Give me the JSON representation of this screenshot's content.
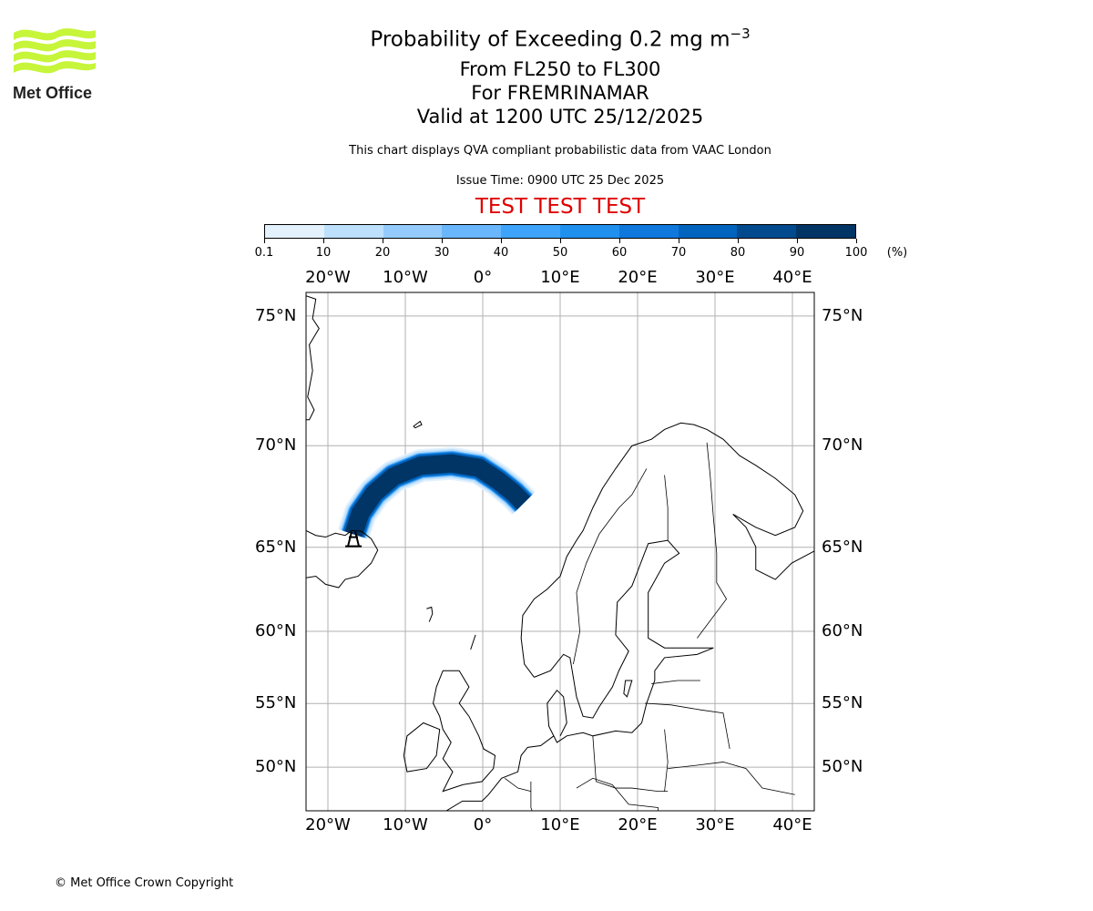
{
  "title": {
    "main": "Probability of Exceeding 0.2 mg m",
    "main_sup": "−3",
    "line2": "From FL250 to FL300",
    "line3": "For FREMRINAMAR",
    "line4": "Valid at 1200 UTC 25/12/2025"
  },
  "subtitle": "This chart displays QVA compliant probabilistic data from VAAC London",
  "issue_time": "Issue Time: 0900 UTC 25 Dec 2025",
  "test_banner": "TEST TEST TEST",
  "copyright": "© Met Office Crown Copyright",
  "logo_text": "Met Office",
  "colorbar": {
    "ticks": [
      "0.1",
      "10",
      "20",
      "30",
      "40",
      "50",
      "60",
      "70",
      "80",
      "90",
      "100"
    ],
    "unit": "(%)",
    "colors": [
      "#e3f1fd",
      "#bde0fd",
      "#94cbfc",
      "#6ab6fc",
      "#3ea3fb",
      "#2090ef",
      "#0f78dd",
      "#0064be",
      "#004a8d",
      "#003566"
    ]
  },
  "chart_data": {
    "type": "map",
    "projection": "mercator",
    "lon_range": [
      -22.8,
      42.9
    ],
    "lat_range": [
      47.3,
      76
    ],
    "lon_labels": [
      {
        "lon": -20,
        "text": "20°W"
      },
      {
        "lon": -10,
        "text": "10°W"
      },
      {
        "lon": 0,
        "text": "0°"
      },
      {
        "lon": 10,
        "text": "10°E"
      },
      {
        "lon": 20,
        "text": "20°E"
      },
      {
        "lon": 30,
        "text": "30°E"
      },
      {
        "lon": 40,
        "text": "40°E"
      }
    ],
    "lat_labels": [
      {
        "lat": 75,
        "text": "75°N"
      },
      {
        "lat": 70,
        "text": "70°N"
      },
      {
        "lat": 65,
        "text": "65°N"
      },
      {
        "lat": 60,
        "text": "60°N"
      },
      {
        "lat": 55,
        "text": "55°N"
      },
      {
        "lat": 50,
        "text": "50°N"
      }
    ],
    "volcano": {
      "name": "FREMRINAMAR",
      "lon": -16.7,
      "lat": 65.45
    },
    "plume": {
      "centerline": [
        [
          -16.7,
          65.7
        ],
        [
          -15.8,
          66.8
        ],
        [
          -14,
          67.8
        ],
        [
          -11.5,
          68.6
        ],
        [
          -8,
          69.1
        ],
        [
          -4,
          69.2
        ],
        [
          -0.5,
          69.0
        ],
        [
          2,
          68.4
        ],
        [
          4,
          67.8
        ],
        [
          5.3,
          67.3
        ]
      ],
      "levels": [
        0.1,
        10,
        30,
        50,
        70,
        90
      ]
    }
  }
}
